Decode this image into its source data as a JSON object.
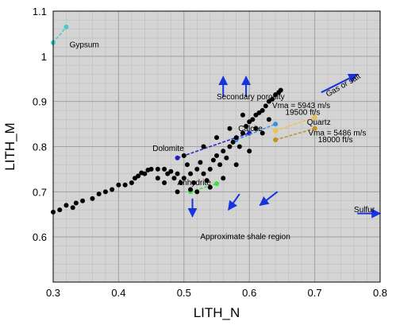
{
  "chart_data": {
    "type": "scatter",
    "title": "",
    "xlabel": "LITH_N",
    "ylabel": "LITH_M",
    "xlim": [
      0.3,
      0.8
    ],
    "ylim": [
      0.5,
      1.1
    ],
    "xticks": [
      "0.3",
      "0.4",
      "0.5",
      "0.6",
      "0.7",
      "0.8"
    ],
    "yticks": [
      "0.6",
      "0.7",
      "0.8",
      "0.9",
      "1",
      "1.1"
    ],
    "grid": true,
    "background": "#d4d4d4",
    "gridColor": "#a0a0a0",
    "minorGridColor": "#bdbdbd",
    "points_color": "#000000",
    "arrow_color": "#1633e0",
    "points": [
      {
        "x": 0.3,
        "y": 0.655
      },
      {
        "x": 0.31,
        "y": 0.66
      },
      {
        "x": 0.32,
        "y": 0.67
      },
      {
        "x": 0.33,
        "y": 0.665
      },
      {
        "x": 0.335,
        "y": 0.675
      },
      {
        "x": 0.345,
        "y": 0.68
      },
      {
        "x": 0.36,
        "y": 0.685
      },
      {
        "x": 0.37,
        "y": 0.695
      },
      {
        "x": 0.38,
        "y": 0.7
      },
      {
        "x": 0.39,
        "y": 0.705
      },
      {
        "x": 0.4,
        "y": 0.715
      },
      {
        "x": 0.41,
        "y": 0.715
      },
      {
        "x": 0.42,
        "y": 0.72
      },
      {
        "x": 0.425,
        "y": 0.73
      },
      {
        "x": 0.43,
        "y": 0.735
      },
      {
        "x": 0.435,
        "y": 0.742
      },
      {
        "x": 0.44,
        "y": 0.74
      },
      {
        "x": 0.445,
        "y": 0.748
      },
      {
        "x": 0.45,
        "y": 0.75
      },
      {
        "x": 0.46,
        "y": 0.75
      },
      {
        "x": 0.47,
        "y": 0.75
      },
      {
        "x": 0.475,
        "y": 0.74
      },
      {
        "x": 0.48,
        "y": 0.745
      },
      {
        "x": 0.485,
        "y": 0.73
      },
      {
        "x": 0.49,
        "y": 0.74
      },
      {
        "x": 0.495,
        "y": 0.72
      },
      {
        "x": 0.5,
        "y": 0.73
      },
      {
        "x": 0.505,
        "y": 0.76
      },
      {
        "x": 0.51,
        "y": 0.74
      },
      {
        "x": 0.515,
        "y": 0.72
      },
      {
        "x": 0.52,
        "y": 0.75
      },
      {
        "x": 0.525,
        "y": 0.765
      },
      {
        "x": 0.53,
        "y": 0.74
      },
      {
        "x": 0.535,
        "y": 0.725
      },
      {
        "x": 0.54,
        "y": 0.75
      },
      {
        "x": 0.545,
        "y": 0.77
      },
      {
        "x": 0.55,
        "y": 0.78
      },
      {
        "x": 0.555,
        "y": 0.76
      },
      {
        "x": 0.56,
        "y": 0.79
      },
      {
        "x": 0.565,
        "y": 0.775
      },
      {
        "x": 0.57,
        "y": 0.8
      },
      {
        "x": 0.575,
        "y": 0.81
      },
      {
        "x": 0.58,
        "y": 0.82
      },
      {
        "x": 0.585,
        "y": 0.8
      },
      {
        "x": 0.59,
        "y": 0.83
      },
      {
        "x": 0.595,
        "y": 0.845
      },
      {
        "x": 0.6,
        "y": 0.855
      },
      {
        "x": 0.605,
        "y": 0.86
      },
      {
        "x": 0.61,
        "y": 0.87
      },
      {
        "x": 0.615,
        "y": 0.875
      },
      {
        "x": 0.62,
        "y": 0.88
      },
      {
        "x": 0.625,
        "y": 0.89
      },
      {
        "x": 0.63,
        "y": 0.9
      },
      {
        "x": 0.635,
        "y": 0.905
      },
      {
        "x": 0.64,
        "y": 0.915
      },
      {
        "x": 0.645,
        "y": 0.92
      },
      {
        "x": 0.648,
        "y": 0.925
      },
      {
        "x": 0.52,
        "y": 0.7
      },
      {
        "x": 0.54,
        "y": 0.71
      },
      {
        "x": 0.56,
        "y": 0.73
      },
      {
        "x": 0.58,
        "y": 0.76
      },
      {
        "x": 0.6,
        "y": 0.79
      },
      {
        "x": 0.57,
        "y": 0.84
      },
      {
        "x": 0.59,
        "y": 0.87
      },
      {
        "x": 0.61,
        "y": 0.84
      },
      {
        "x": 0.55,
        "y": 0.82
      },
      {
        "x": 0.5,
        "y": 0.78
      },
      {
        "x": 0.49,
        "y": 0.7
      },
      {
        "x": 0.47,
        "y": 0.72
      },
      {
        "x": 0.46,
        "y": 0.73
      },
      {
        "x": 0.62,
        "y": 0.83
      },
      {
        "x": 0.63,
        "y": 0.86
      },
      {
        "x": 0.53,
        "y": 0.8
      },
      {
        "x": 0.51,
        "y": 0.705
      }
    ],
    "mineral_lines": [
      {
        "name": "Gypsum",
        "color": "#48c8c8",
        "x": [
          0.3,
          0.32
        ],
        "y": [
          1.03,
          1.065
        ]
      },
      {
        "name": "Dolomite",
        "color": "#2020c0",
        "x": [
          0.49,
          0.6
        ],
        "y": [
          0.775,
          0.83
        ]
      },
      {
        "name": "Calcite",
        "color": "#3f8fe0",
        "x": [
          0.58,
          0.64
        ],
        "y": [
          0.815,
          0.85
        ]
      },
      {
        "name": "Quartz 5943",
        "color": "#f0c040",
        "x": [
          0.64,
          0.7
        ],
        "y": [
          0.835,
          0.865
        ]
      },
      {
        "name": "Quartz 5486",
        "color": "#c09020",
        "x": [
          0.64,
          0.7
        ],
        "y": [
          0.815,
          0.84
        ]
      },
      {
        "name": "Anhydrite",
        "color": "#40e040",
        "x": [
          0.51,
          0.55
        ],
        "y": [
          0.7,
          0.718
        ]
      }
    ],
    "annotations": [
      {
        "id": "gypsum",
        "text": "Gypsum",
        "x": 0.325,
        "y": 1.02,
        "anchor": "start"
      },
      {
        "id": "secondary-porosity",
        "text": "Secondary porosity",
        "x": 0.55,
        "y": 0.905,
        "anchor": "start"
      },
      {
        "id": "gas-or-salt",
        "text": "Gas or salt",
        "x": 0.72,
        "y": 0.91,
        "anchor": "start",
        "rotate": -30
      },
      {
        "id": "vma-5943",
        "text": "Vma = 5943 m/s",
        "x": 0.635,
        "y": 0.885,
        "anchor": "start"
      },
      {
        "id": "vma-19500",
        "text": "19500 ft/s",
        "x": 0.655,
        "y": 0.87,
        "anchor": "start"
      },
      {
        "id": "quartz",
        "text": "Quartz",
        "x": 0.688,
        "y": 0.848,
        "anchor": "start"
      },
      {
        "id": "vma-5486",
        "text": "Vma = 5486 m/s",
        "x": 0.69,
        "y": 0.825,
        "anchor": "start"
      },
      {
        "id": "vma-18000",
        "text": "18000 ft/s",
        "x": 0.705,
        "y": 0.81,
        "anchor": "start"
      },
      {
        "id": "dolomite",
        "text": "Dolomite",
        "x": 0.452,
        "y": 0.79,
        "anchor": "start"
      },
      {
        "id": "calcite",
        "text": "Calcite",
        "x": 0.583,
        "y": 0.834,
        "anchor": "start"
      },
      {
        "id": "anhydrite",
        "text": "Anhydrite",
        "x": 0.49,
        "y": 0.715,
        "anchor": "start"
      },
      {
        "id": "sulfur",
        "text": "Sulfur",
        "x": 0.76,
        "y": 0.655,
        "anchor": "start"
      },
      {
        "id": "approximate-shale-region",
        "text": "Approximate shale region",
        "x": 0.525,
        "y": 0.595,
        "anchor": "start"
      }
    ],
    "arrows": [
      {
        "id": "up-left",
        "x1": 0.56,
        "y1": 0.91,
        "x2": 0.56,
        "y2": 0.955
      },
      {
        "id": "up-right",
        "x1": 0.595,
        "y1": 0.91,
        "x2": 0.595,
        "y2": 0.955
      },
      {
        "id": "gas-salt",
        "x1": 0.71,
        "y1": 0.92,
        "x2": 0.765,
        "y2": 0.96
      },
      {
        "id": "down-1",
        "x1": 0.513,
        "y1": 0.685,
        "x2": 0.513,
        "y2": 0.645
      },
      {
        "id": "down-2",
        "x1": 0.585,
        "y1": 0.695,
        "x2": 0.568,
        "y2": 0.66
      },
      {
        "id": "down-3",
        "x1": 0.643,
        "y1": 0.7,
        "x2": 0.616,
        "y2": 0.67
      },
      {
        "id": "sulfur",
        "x1": 0.765,
        "y1": 0.652,
        "x2": 0.8,
        "y2": 0.652
      }
    ]
  }
}
